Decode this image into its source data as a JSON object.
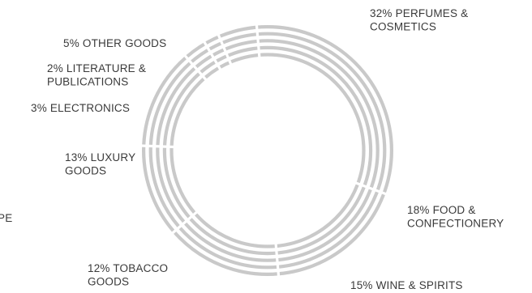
{
  "chart_data": {
    "type": "pie",
    "style": "concentric-ring-donut",
    "ring_count": 5,
    "ring_color": "#c9c9c9",
    "gap_color": "#ffffff",
    "slices": [
      {
        "name": "PERFUMES & COSMETICS",
        "value": 32,
        "label_lines": [
          "32% PERFUMES &",
          "COSMETICS"
        ]
      },
      {
        "name": "FOOD & CONFECTIONERY",
        "value": 18,
        "label_lines": [
          "18% FOOD &",
          "CONFECTIONERY"
        ]
      },
      {
        "name": "WINE & SPIRITS",
        "value": 15,
        "label_lines": [
          "15% WINE & SPIRITS"
        ]
      },
      {
        "name": "TOBACCO GOODS",
        "value": 12,
        "label_lines": [
          "12% TOBACCO",
          "GOODS"
        ]
      },
      {
        "name": "LUXURY GOODS",
        "value": 13,
        "label_lines": [
          "13% LUXURY",
          "GOODS"
        ]
      },
      {
        "name": "ELECTRONICS",
        "value": 3,
        "label_lines": [
          "3% ELECTRONICS"
        ]
      },
      {
        "name": "LITERATURE & PUBLICATIONS",
        "value": 2,
        "label_lines": [
          "2% LITERATURE &",
          "PUBLICATIONS"
        ]
      },
      {
        "name": "OTHER GOODS",
        "value": 5,
        "label_lines": [
          "5% OTHER GOODS"
        ]
      }
    ],
    "cut_off_label_fragment": "PE"
  }
}
